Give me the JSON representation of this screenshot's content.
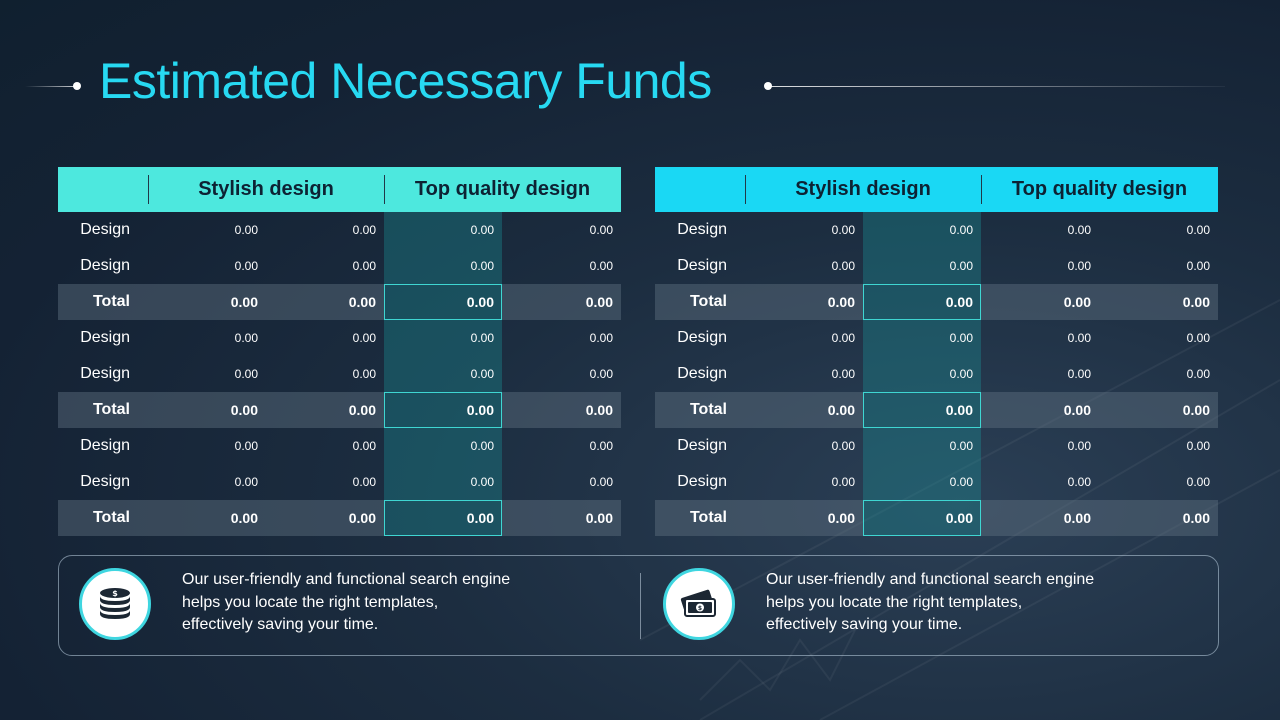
{
  "title": "Estimated Necessary Funds",
  "tables": [
    {
      "headers": [
        "",
        "Stylish design",
        "Top quality design"
      ],
      "rows": [
        {
          "label": "Design",
          "values": [
            "0.00",
            "0.00",
            "0.00",
            "0.00"
          ],
          "total": false
        },
        {
          "label": "Design",
          "values": [
            "0.00",
            "0.00",
            "0.00",
            "0.00"
          ],
          "total": false
        },
        {
          "label": "Total",
          "values": [
            "0.00",
            "0.00",
            "0.00",
            "0.00"
          ],
          "total": true
        },
        {
          "label": "Design",
          "values": [
            "0.00",
            "0.00",
            "0.00",
            "0.00"
          ],
          "total": false
        },
        {
          "label": "Design",
          "values": [
            "0.00",
            "0.00",
            "0.00",
            "0.00"
          ],
          "total": false
        },
        {
          "label": "Total",
          "values": [
            "0.00",
            "0.00",
            "0.00",
            "0.00"
          ],
          "total": true
        },
        {
          "label": "Design",
          "values": [
            "0.00",
            "0.00",
            "0.00",
            "0.00"
          ],
          "total": false
        },
        {
          "label": "Design",
          "values": [
            "0.00",
            "0.00",
            "0.00",
            "0.00"
          ],
          "total": false
        },
        {
          "label": "Total",
          "values": [
            "0.00",
            "0.00",
            "0.00",
            "0.00"
          ],
          "total": true
        }
      ]
    },
    {
      "headers": [
        "",
        "Stylish design",
        "Top quality design"
      ],
      "rows": [
        {
          "label": "Design",
          "values": [
            "0.00",
            "0.00",
            "0.00",
            "0.00"
          ],
          "total": false
        },
        {
          "label": "Design",
          "values": [
            "0.00",
            "0.00",
            "0.00",
            "0.00"
          ],
          "total": false
        },
        {
          "label": "Total",
          "values": [
            "0.00",
            "0.00",
            "0.00",
            "0.00"
          ],
          "total": true
        },
        {
          "label": "Design",
          "values": [
            "0.00",
            "0.00",
            "0.00",
            "0.00"
          ],
          "total": false
        },
        {
          "label": "Design",
          "values": [
            "0.00",
            "0.00",
            "0.00",
            "0.00"
          ],
          "total": false
        },
        {
          "label": "Total",
          "values": [
            "0.00",
            "0.00",
            "0.00",
            "0.00"
          ],
          "total": true
        },
        {
          "label": "Design",
          "values": [
            "0.00",
            "0.00",
            "0.00",
            "0.00"
          ],
          "total": false
        },
        {
          "label": "Design",
          "values": [
            "0.00",
            "0.00",
            "0.00",
            "0.00"
          ],
          "total": false
        },
        {
          "label": "Total",
          "values": [
            "0.00",
            "0.00",
            "0.00",
            "0.00"
          ],
          "total": true
        }
      ]
    }
  ],
  "info": [
    {
      "icon": "coin-stack-icon",
      "text": "Our user-friendly and functional search engine helps you locate the right templates, effectively saving your time."
    },
    {
      "icon": "cash-banknote-icon",
      "text": "Our user-friendly and functional search engine helps you locate the right templates, effectively saving your time."
    }
  ],
  "colors": {
    "title": "#27d9f2",
    "left_header": "#4de8de",
    "right_header": "#1ad8f4",
    "highlight_outline": "#3fd6d2",
    "background": "#142234"
  }
}
